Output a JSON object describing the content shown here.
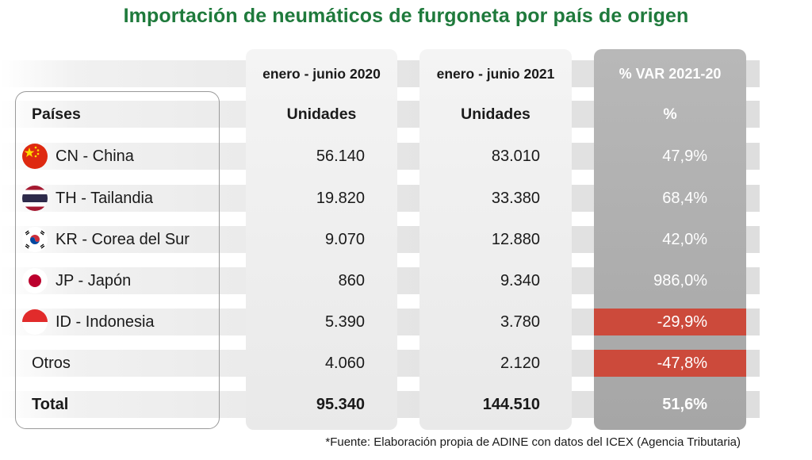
{
  "title": "Importación de neumáticos de furgoneta por país de origen",
  "headers": {
    "period_2020": "enero - junio 2020",
    "period_2021": "enero - junio 2021",
    "variation": "% VAR 2021-20",
    "countries": "Países",
    "units_2020": "Unidades",
    "units_2021": "Unidades",
    "percent": "%"
  },
  "chart_data": {
    "type": "table",
    "columns": [
      "Países",
      "enero - junio 2020 Unidades",
      "enero - junio 2021 Unidades",
      "% VAR 2021-20"
    ],
    "rows": [
      {
        "country": "CN - China",
        "flag": "china-flag-icon",
        "v2020": "56.140",
        "v2021": "83.010",
        "var": "47,9%",
        "negative": false
      },
      {
        "country": "TH - Tailandia",
        "flag": "thailand-flag-icon",
        "v2020": "19.820",
        "v2021": "33.380",
        "var": "68,4%",
        "negative": false
      },
      {
        "country": "KR - Corea del Sur",
        "flag": "south-korea-flag-icon",
        "v2020": "9.070",
        "v2021": "12.880",
        "var": "42,0%",
        "negative": false
      },
      {
        "country": "JP - Japón",
        "flag": "japan-flag-icon",
        "v2020": "860",
        "v2021": "9.340",
        "var": "986,0%",
        "negative": false
      },
      {
        "country": "ID - Indonesia",
        "flag": "indonesia-flag-icon",
        "v2020": "5.390",
        "v2021": "3.780",
        "var": "-29,9%",
        "negative": true
      },
      {
        "country": "Otros",
        "flag": "",
        "v2020": "4.060",
        "v2021": "2.120",
        "var": "-47,8%",
        "negative": true
      }
    ],
    "total": {
      "label": "Total",
      "v2020": "95.340",
      "v2021": "144.510",
      "var": "51,6%"
    }
  },
  "colors": {
    "title": "#1f7a3c",
    "negative": "#cc4a3b",
    "variation_panel": "#a9a9a9"
  },
  "source": "*Fuente: Elaboración propia de ADINE con datos del ICEX (Agencia Tributaria)"
}
